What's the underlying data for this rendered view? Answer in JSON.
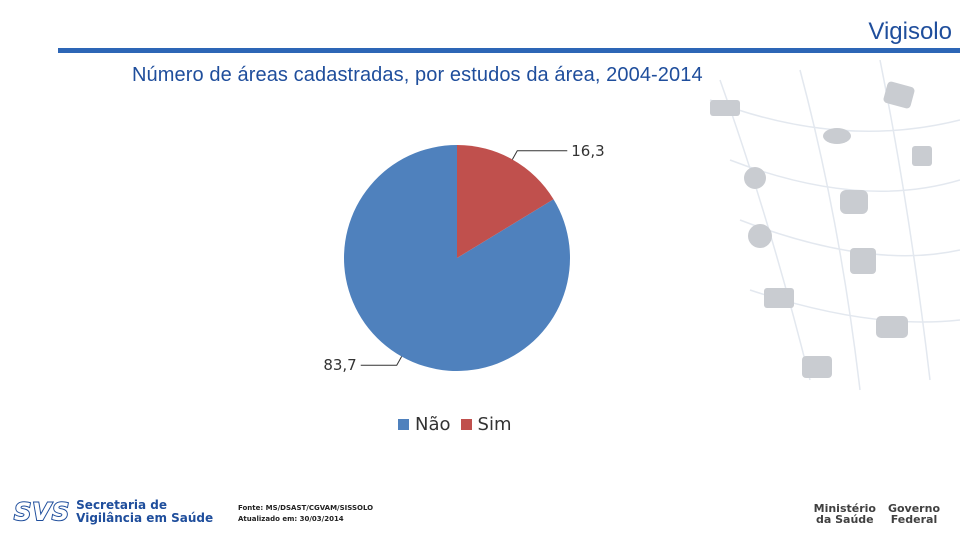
{
  "header": {
    "brand": "Vigisolo",
    "title": "Número de áreas cadastradas, por estudos da área, 2004-2014"
  },
  "chart_data": {
    "type": "pie",
    "title": "",
    "categories": [
      "Não",
      "Sim"
    ],
    "values": [
      83.7,
      16.3
    ],
    "data_labels": [
      "83,7",
      "16,3"
    ],
    "colors": [
      "#4f81bd",
      "#c0504d"
    ],
    "legend": {
      "position": "bottom",
      "entries": [
        "Não",
        "Sim"
      ]
    }
  },
  "footer": {
    "source_line": "Fonte: MS/DSAST/CGVAM/SISSOLO",
    "updated_line": "Atualizado em: 30/03/2014",
    "svs_logo": "SVS",
    "svs_line1": "Secretaria de",
    "svs_line2": "Vigilância em Saúde",
    "ministry": "Ministério\nda Saúde",
    "government": "Governo\nFederal"
  }
}
